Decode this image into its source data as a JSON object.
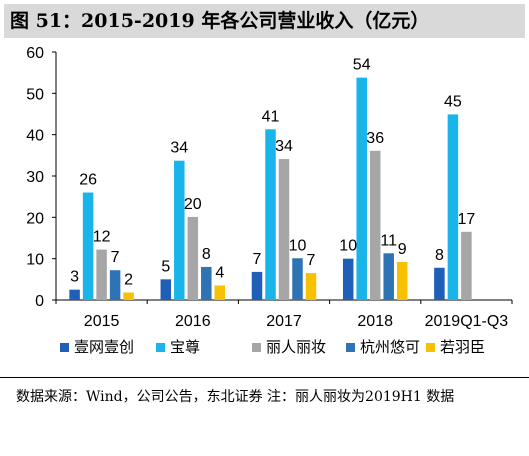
{
  "figure_title": "图 51：2015-2019 年各公司营业收入（亿元）",
  "source_note": "数据来源：Wind，公司公告，东北证券 注：丽人丽妆为2019H1 数据",
  "chart_data": {
    "type": "bar",
    "categories": [
      "2015",
      "2016",
      "2017",
      "2018",
      "2019Q1-Q3"
    ],
    "series": [
      {
        "name": "壹网壹创",
        "color": "#1f5fb8",
        "values": [
          2.5,
          5,
          6.8,
          10,
          7.8
        ],
        "labels": [
          "3",
          "5",
          "7",
          "10",
          "8"
        ]
      },
      {
        "name": "宝尊",
        "color": "#19b4ea",
        "values": [
          26,
          33.7,
          41.3,
          53.8,
          44.9
        ],
        "labels": [
          "26",
          "34",
          "41",
          "54",
          "45"
        ]
      },
      {
        "name": "丽人丽妆",
        "color": "#a6a6a6",
        "values": [
          12.2,
          20.1,
          34.1,
          36.1,
          16.5
        ],
        "labels": [
          "12",
          "20",
          "34",
          "36",
          "17"
        ]
      },
      {
        "name": "杭州悠可",
        "color": "#2e73b4",
        "values": [
          7.2,
          8,
          10.1,
          11.3,
          null
        ],
        "labels": [
          "7",
          "8",
          "10",
          "11",
          ""
        ]
      },
      {
        "name": "若羽臣",
        "color": "#f7c000",
        "values": [
          1.8,
          3.5,
          6.5,
          9.2,
          null
        ],
        "labels": [
          "2",
          "4",
          "7",
          "9",
          ""
        ]
      }
    ],
    "ylim": [
      0,
      60
    ],
    "yticks": [
      0,
      10,
      20,
      30,
      40,
      50,
      60
    ],
    "legend_position": "bottom",
    "grid": false
  }
}
